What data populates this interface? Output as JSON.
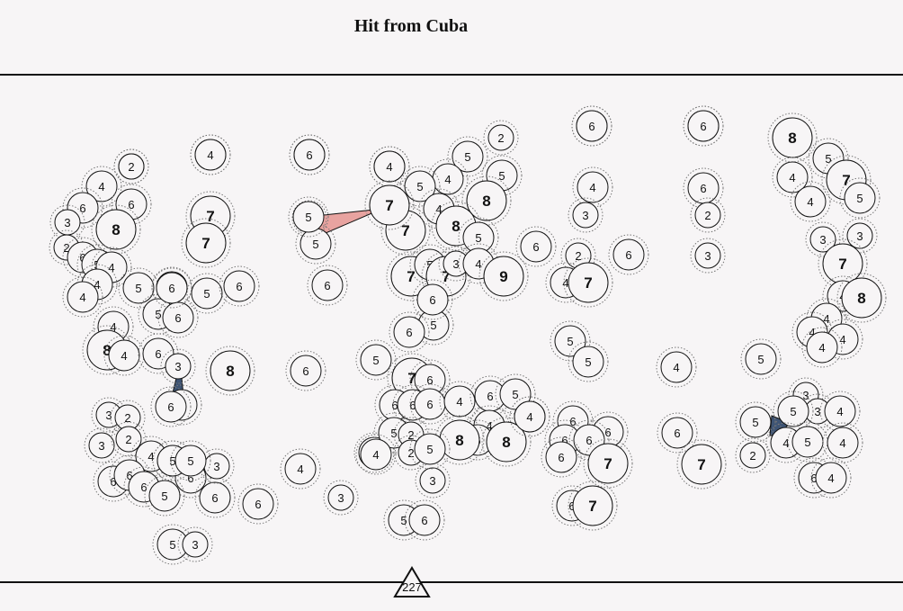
{
  "title": "Hit from Cuba",
  "marker_label": "227",
  "colors": {
    "background": "#f7f5f6",
    "ink": "#111111",
    "ring": "#777777",
    "link_red": "#e8a3a0",
    "link_blue": "#3e5474"
  },
  "bubble_values": [
    2,
    4,
    4,
    4,
    4,
    4,
    6,
    6,
    3,
    8,
    2,
    6,
    5,
    4,
    4,
    4,
    4,
    8,
    4,
    6,
    7,
    7,
    5,
    6,
    5,
    6,
    5,
    6,
    6,
    3,
    8,
    3,
    5,
    6,
    6,
    2,
    4,
    5,
    4,
    5,
    5,
    8,
    4,
    7,
    8,
    5,
    7,
    5,
    7,
    3,
    4,
    9,
    6,
    5,
    6,
    6,
    5,
    7,
    6,
    6,
    6,
    6,
    4,
    6,
    5,
    6,
    5,
    4,
    5,
    6,
    8,
    2,
    4,
    3,
    2,
    5,
    8,
    5,
    6,
    4,
    4,
    3,
    2,
    4,
    7,
    6,
    5,
    5,
    6,
    6,
    6,
    6,
    6,
    7,
    4,
    6,
    7,
    6,
    6,
    2,
    3,
    4,
    6,
    7,
    5,
    8,
    5,
    4,
    7,
    4,
    5,
    3,
    3,
    7,
    4,
    8,
    4,
    4,
    4,
    4,
    3,
    3,
    5,
    4,
    4,
    5,
    4,
    5,
    2,
    6,
    4,
    5,
    3,
    3,
    2,
    3,
    2,
    4,
    4,
    6,
    6,
    6,
    6,
    6,
    6,
    6,
    5,
    3,
    5,
    5,
    5,
    7,
    6,
    4,
    3,
    2,
    4,
    6,
    6
  ]
}
